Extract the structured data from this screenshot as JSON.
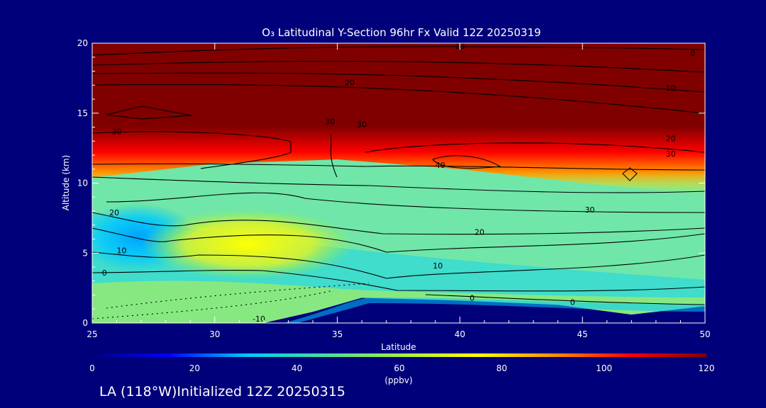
{
  "chart_data": {
    "type": "heatmap",
    "title": "O₃ Latitudinal Y-Section 96hr  Fx Valid 12Z 20250319",
    "xlabel": "Latitude",
    "ylabel": "Altitude (km)",
    "xlim": [
      25,
      50
    ],
    "ylim": [
      0,
      20
    ],
    "x_ticks": [
      "25",
      "30",
      "35",
      "40",
      "45",
      "50"
    ],
    "y_ticks": [
      "0",
      "5",
      "10",
      "15",
      "20"
    ],
    "colorbar": {
      "label": "(ppbv)",
      "range": [
        0,
        120
      ],
      "ticks": [
        "0",
        "20",
        "40",
        "60",
        "80",
        "100",
        "120"
      ],
      "colors": [
        "#000080",
        "#0000ff",
        "#00c8ff",
        "#40e0a0",
        "#a0f040",
        "#ffff00",
        "#ff9000",
        "#ff0000",
        "#800000"
      ]
    },
    "surface_terrain_km": [
      {
        "lat": 25,
        "alt": 0
      },
      {
        "lat": 32,
        "alt": 0
      },
      {
        "lat": 34,
        "alt": 0.8
      },
      {
        "lat": 36,
        "alt": 1.8
      },
      {
        "lat": 40,
        "alt": 1.6
      },
      {
        "lat": 44,
        "alt": 1.3
      },
      {
        "lat": 47,
        "alt": 0.6
      },
      {
        "lat": 50,
        "alt": 1.2
      }
    ],
    "tropopause_km": [
      {
        "lat": 25,
        "alt": 11.0
      },
      {
        "lat": 30,
        "alt": 12.0
      },
      {
        "lat": 35,
        "alt": 12.3
      },
      {
        "lat": 40,
        "alt": 11.6
      },
      {
        "lat": 45,
        "alt": 10.6
      },
      {
        "lat": 50,
        "alt": 9.8
      }
    ],
    "contour_labels": [
      {
        "text": "10",
        "lat": 40.0,
        "alt": 19.6
      },
      {
        "text": "0",
        "lat": 49.5,
        "alt": 19.1
      },
      {
        "text": "20",
        "lat": 35.5,
        "alt": 17.0
      },
      {
        "text": "10",
        "lat": 48.6,
        "alt": 16.6
      },
      {
        "text": "30",
        "lat": 26.0,
        "alt": 13.5
      },
      {
        "text": "30",
        "lat": 34.7,
        "alt": 14.2
      },
      {
        "text": "30",
        "lat": 36.0,
        "alt": 14.0
      },
      {
        "text": "20",
        "lat": 48.6,
        "alt": 13.0
      },
      {
        "text": "30",
        "lat": 48.6,
        "alt": 11.9
      },
      {
        "text": "40",
        "lat": 39.2,
        "alt": 11.1
      },
      {
        "text": "30",
        "lat": 45.3,
        "alt": 7.9
      },
      {
        "text": "20",
        "lat": 25.9,
        "alt": 7.7
      },
      {
        "text": "20",
        "lat": 40.8,
        "alt": 6.3
      },
      {
        "text": "10",
        "lat": 26.2,
        "alt": 5.0
      },
      {
        "text": "10",
        "lat": 39.1,
        "alt": 3.9
      },
      {
        "text": "0",
        "lat": 25.5,
        "alt": 3.4
      },
      {
        "text": "0",
        "lat": 40.5,
        "alt": 1.6
      },
      {
        "text": "0",
        "lat": 44.6,
        "alt": 1.3
      },
      {
        "text": "-10",
        "lat": 31.8,
        "alt": 0.1
      }
    ]
  },
  "footer": {
    "caption": "LA (118°W)Initialized 12Z 20250315"
  }
}
